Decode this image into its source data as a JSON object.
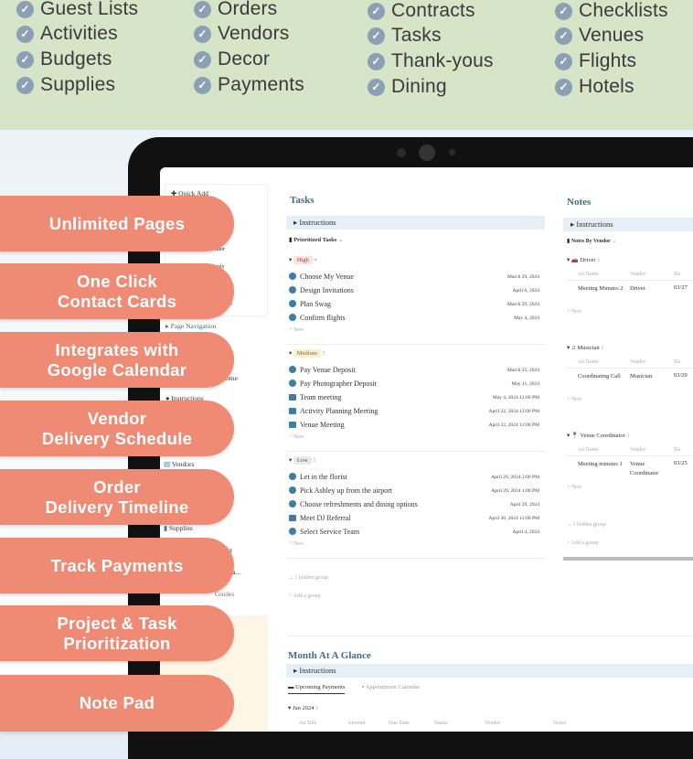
{
  "features": [
    [
      "Guest Lists",
      "Activities",
      "Budgets",
      "Supplies"
    ],
    [
      "Orders",
      "Vendors",
      "Decor",
      "Payments"
    ],
    [
      "Contracts",
      "Tasks",
      "Thank-yous",
      "Dining"
    ],
    [
      "Checklists",
      "Venues",
      "Flights",
      "Hotels"
    ]
  ],
  "pills": [
    "Unlimited Pages",
    "One Click\nContact Cards",
    "Integrates with\nGoogle Calendar",
    "Vendor\nDelivery Schedule",
    "Order\nDelivery Timeline",
    "Track Payments",
    "Project & Task\nPrioritization",
    "Note Pad"
  ],
  "colors": {
    "pill": "#ef8a75",
    "top_band": "#d6e4c8",
    "accent": "#3d6f86"
  },
  "sidebar": {
    "quick_add": "Quick Add",
    "frag1": "ndor",
    "frag2": "pply",
    "frag3": "g",
    "page_nav": "Page Navigation",
    "frag_home": "ome",
    "instructions": "Instructions",
    "vendors": "Vendors",
    "supplies": "Supplies",
    "frag_list": "ist",
    "frag_aba": "aba...",
    "frag_guides": "Guides"
  },
  "tasks": {
    "title": "Tasks",
    "instructions": "Instructions",
    "view": "Prioritized Tasks",
    "groups": [
      {
        "label": "High",
        "count": "4",
        "items": [
          [
            "Choose My Venue",
            "March 29, 2024",
            "check"
          ],
          [
            "Design Invitations",
            "April 6, 2024",
            "check"
          ],
          [
            "Plan Swag",
            "March 29, 2024",
            "check"
          ],
          [
            "Confirm flights",
            "May 4, 2024",
            "check"
          ]
        ]
      },
      {
        "label": "Medium",
        "count": "5",
        "items": [
          [
            "Pay Venue Deposit",
            "March 25, 2024",
            "check"
          ],
          [
            "Pay Photographer Deposit",
            "May 11, 2024",
            "check"
          ],
          [
            "Team meeting",
            "May 4, 2024 12:00 PM",
            "calendar"
          ],
          [
            "Activity Planning Meeting",
            "April 22, 2024 12:00 PM",
            "calendar"
          ],
          [
            "Venue Meeting",
            "April 22, 2024 12:00 PM",
            "calendar"
          ]
        ]
      },
      {
        "label": "Low",
        "count": "5",
        "items": [
          [
            "Let in the florist",
            "April 29, 2024 2:00 PM",
            "check"
          ],
          [
            "Pick Ashley up from the airport",
            "April 29, 2024 1:00 PM",
            "check"
          ],
          [
            "Choose refreshments and dining options",
            "April 29, 2024",
            "check"
          ],
          [
            "Meet DJ Referral",
            "April 30, 2024 12:00 PM",
            "calendar"
          ],
          [
            "Select Service Team",
            "April 4, 2024",
            "check"
          ]
        ]
      }
    ],
    "new": "+ New",
    "hidden": "1 hidden group",
    "add_group": "+ Add a group"
  },
  "notes": {
    "title": "Notes",
    "instructions": "Instructions",
    "view": "Notes By Vendor",
    "col_name": "Aa Name",
    "col_vendor": "Vendor",
    "col_date": "Da",
    "groups": [
      {
        "label": "Driver",
        "count": "1",
        "name": "Meeting Minutes 2",
        "vendor": "Driver",
        "date": "03/27"
      },
      {
        "label": "Musician",
        "count": "1",
        "name": "Coordinating Call",
        "vendor": "Musician",
        "date": "03/29"
      },
      {
        "label": "Venue Coordinator",
        "count": "1",
        "name": "Meeting minutes 1",
        "vendor": "Venue Coordinator",
        "date": "03/25"
      }
    ],
    "new": "+ New",
    "hidden": "1 hidden group",
    "add_group": "+ Add a group"
  },
  "month": {
    "title": "Month At A Glance",
    "instructions": "Instructions",
    "tabs": [
      "Upcoming Payments",
      "Appointment Calendar"
    ],
    "group": "Jun 2024",
    "group_count": "1",
    "columns": [
      "Aa Title",
      "Amount",
      "Due Date",
      "Status",
      "Vendor",
      "Notes"
    ]
  }
}
